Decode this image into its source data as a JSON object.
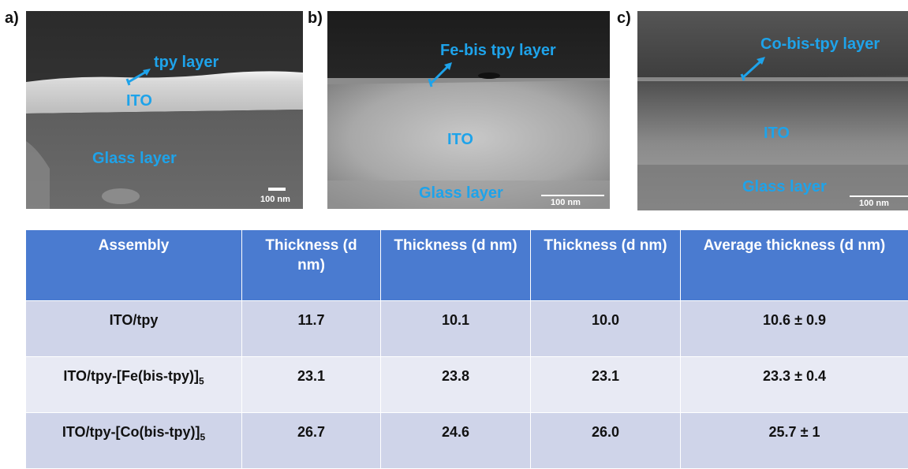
{
  "panels": [
    {
      "letter": "a)",
      "labels": {
        "layer": "tpy layer",
        "ito": "ITO",
        "glass": "Glass layer"
      },
      "scale": "100 nm"
    },
    {
      "letter": "b)",
      "labels": {
        "layer": "Fe-bis tpy layer",
        "ito": "ITO",
        "glass": "Glass layer"
      },
      "scale": "100 nm"
    },
    {
      "letter": "c)",
      "labels": {
        "layer": "Co-bis-tpy layer",
        "ito": "ITO",
        "glass": "Glass layer"
      },
      "scale": "100 nm"
    }
  ],
  "table": {
    "headers": [
      "Assembly",
      "Thickness (d nm)",
      "Thickness (d nm)",
      "Thickness (d nm)",
      "Average thickness (d nm)"
    ],
    "rows": [
      {
        "assembly": "ITO/tpy",
        "sub": "",
        "t1": "11.7",
        "t2": "10.1",
        "t3": "10.0",
        "avg": "10.6 ± 0.9"
      },
      {
        "assembly": "ITO/tpy-[Fe(bis-tpy)]",
        "sub": "5",
        "t1": "23.1",
        "t2": "23.8",
        "t3": "23.1",
        "avg": "23.3 ± 0.4"
      },
      {
        "assembly": "ITO/tpy-[Co(bis-tpy)]",
        "sub": "5",
        "t1": "26.7",
        "t2": "24.6",
        "t3": "26.0",
        "avg": "25.7 ± 1"
      }
    ]
  },
  "colors": {
    "label": "#1ea3ea",
    "header": "#4a7bd0",
    "row_odd": "#cfd4e9",
    "row_even": "#e8eaf4"
  }
}
